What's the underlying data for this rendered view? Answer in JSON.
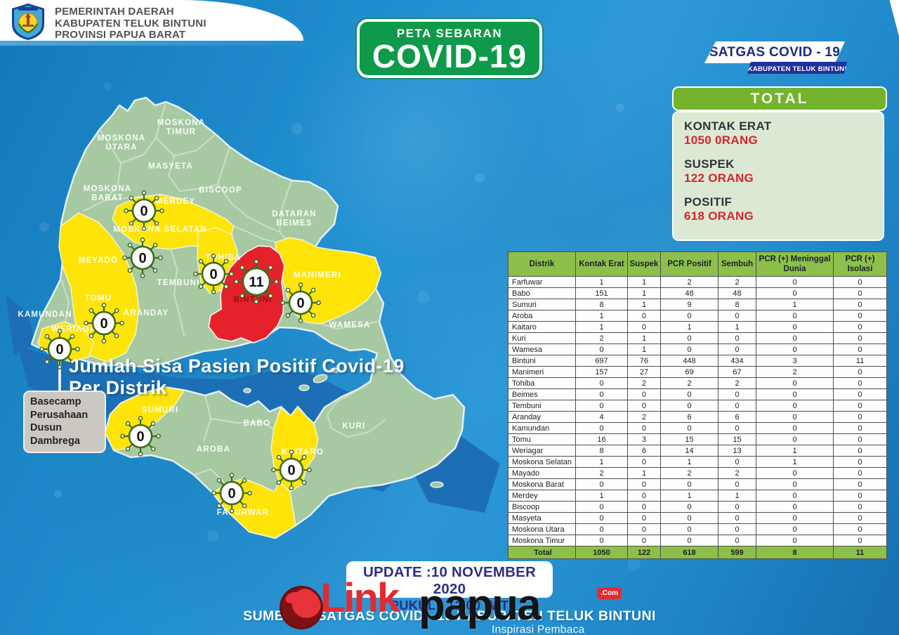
{
  "header": {
    "government": [
      "PEMERINTAH DAERAH",
      "KABUPATEN TELUK BINTUNI",
      "PROVINSI PAPUA BARAT"
    ],
    "sign": {
      "line1": "PETA SEBARAN",
      "line2": "COVID-19"
    },
    "satgas": {
      "title": "SATGAS COVID - 19",
      "subtitle": "KABUPATEN TELUK BINTUNI"
    }
  },
  "totals": {
    "title": "TOTAL",
    "stats": [
      {
        "label": "KONTAK ERAT",
        "value": "1050 0RANG"
      },
      {
        "label": "SUSPEK",
        "value": "122 ORANG"
      },
      {
        "label": "POSITIF",
        "value": "618 ORANG"
      }
    ]
  },
  "map": {
    "caption_line1": "Jumlah Sisa Pasien Positif Covid-19",
    "caption_line2": "Per Distrik",
    "annotation": [
      "Basecamp",
      "Perusahaan",
      "Dusun",
      "Dambrega"
    ],
    "labels": [
      {
        "id": "moskona-timur",
        "lines": [
          "MOSKONA",
          "TIMUR"
        ]
      },
      {
        "id": "moskona-utara",
        "lines": [
          "MOSKONA",
          "UTARA"
        ]
      },
      {
        "id": "masyeta",
        "lines": [
          "MASYETA"
        ]
      },
      {
        "id": "moskona-barat",
        "lines": [
          "MOSKONA",
          "BARAT"
        ]
      },
      {
        "id": "merdey",
        "lines": [
          "MERDEY"
        ]
      },
      {
        "id": "biscoop",
        "lines": [
          "BISCOOP"
        ]
      },
      {
        "id": "dataran-beimes",
        "lines": [
          "DATARAN",
          "BEIMES"
        ]
      },
      {
        "id": "moskona-selatan",
        "lines": [
          "MOSKONA SELATAN"
        ]
      },
      {
        "id": "meyado",
        "lines": [
          "MEYADO"
        ]
      },
      {
        "id": "tohiba",
        "lines": [
          "TOHIBA"
        ]
      },
      {
        "id": "tembuni",
        "lines": [
          "TEMBUNI"
        ]
      },
      {
        "id": "aranday",
        "lines": [
          "ARANDAY"
        ]
      },
      {
        "id": "tomu",
        "lines": [
          "TOMU"
        ]
      },
      {
        "id": "kamundan",
        "lines": [
          "KAMUNDAN"
        ]
      },
      {
        "id": "weriagar",
        "lines": [
          "WERIAGAR"
        ]
      },
      {
        "id": "bintuni",
        "lines": [
          "BINTUNI"
        ],
        "emphasis": "dark-red"
      },
      {
        "id": "manimeri",
        "lines": [
          "MANIMERI"
        ]
      },
      {
        "id": "wamesa",
        "lines": [
          "WAMESA"
        ]
      },
      {
        "id": "sumuri",
        "lines": [
          "SUMURI"
        ]
      },
      {
        "id": "babo",
        "lines": [
          "BABO"
        ]
      },
      {
        "id": "aroba",
        "lines": [
          "AROBA"
        ]
      },
      {
        "id": "kaitaro",
        "lines": [
          "KAITARO"
        ]
      },
      {
        "id": "kuri",
        "lines": [
          "KURI"
        ]
      },
      {
        "id": "fafurwar",
        "lines": [
          "FAFURWAR"
        ]
      }
    ],
    "badges": [
      {
        "id": "moskona-selatan",
        "district": "Moskona Selatan",
        "value": "0"
      },
      {
        "id": "meyado",
        "district": "Meyado",
        "value": "0"
      },
      {
        "id": "tohiba",
        "district": "Tohiba",
        "value": "0"
      },
      {
        "id": "bintuni",
        "district": "Bintuni",
        "value": "11"
      },
      {
        "id": "manimeri",
        "district": "Manimeri",
        "value": "0"
      },
      {
        "id": "tomu",
        "district": "Tomu",
        "value": "0"
      },
      {
        "id": "weriagar",
        "district": "Weriagar",
        "value": "0"
      },
      {
        "id": "sumuri",
        "district": "Sumuri",
        "value": "0"
      },
      {
        "id": "kaitaro",
        "district": "Kaitaro",
        "value": "0"
      },
      {
        "id": "fafurwar",
        "district": "Fafurwar",
        "value": "0"
      }
    ]
  },
  "table": {
    "columns": [
      "Distrik",
      "Kontak Erat",
      "Suspek",
      "PCR Positif",
      "Sembuh",
      "PCR (+) Meninggal Dunia",
      "PCR (+) Isolasi"
    ],
    "rows": [
      [
        "Farfuwar",
        "1",
        "1",
        "2",
        "2",
        "0",
        "0"
      ],
      [
        "Babo",
        "151",
        "1",
        "48",
        "48",
        "0",
        "0"
      ],
      [
        "Sumuri",
        "8",
        "1",
        "9",
        "8",
        "1",
        "0"
      ],
      [
        "Aroba",
        "1",
        "0",
        "0",
        "0",
        "0",
        "0"
      ],
      [
        "Kaitaro",
        "1",
        "0",
        "1",
        "1",
        "0",
        "0"
      ],
      [
        "Kuri",
        "2",
        "1",
        "0",
        "0",
        "0",
        "0"
      ],
      [
        "Wamesa",
        "0",
        "1",
        "0",
        "0",
        "0",
        "0"
      ],
      [
        "Bintuni",
        "697",
        "76",
        "448",
        "434",
        "3",
        "11"
      ],
      [
        "Manimeri",
        "157",
        "27",
        "69",
        "67",
        "2",
        "0"
      ],
      [
        "Tohiba",
        "0",
        "2",
        "2",
        "2",
        "0",
        "0"
      ],
      [
        "Beimes",
        "0",
        "0",
        "0",
        "0",
        "0",
        "0"
      ],
      [
        "Tembuni",
        "0",
        "0",
        "0",
        "0",
        "0",
        "0"
      ],
      [
        "Aranday",
        "4",
        "2",
        "6",
        "6",
        "0",
        "0"
      ],
      [
        "Kamundan",
        "0",
        "0",
        "0",
        "0",
        "0",
        "0"
      ],
      [
        "Tomu",
        "16",
        "3",
        "15",
        "15",
        "0",
        "0"
      ],
      [
        "Weriagar",
        "8",
        "6",
        "14",
        "13",
        "1",
        "0"
      ],
      [
        "Moskona Selatan",
        "1",
        "0",
        "1",
        "0",
        "1",
        "0"
      ],
      [
        "Mayado",
        "2",
        "1",
        "2",
        "2",
        "0",
        "0"
      ],
      [
        "Moskona Barat",
        "0",
        "0",
        "0",
        "0",
        "0",
        "0"
      ],
      [
        "Merdey",
        "1",
        "0",
        "1",
        "1",
        "0",
        "0"
      ],
      [
        "Biscoop",
        "0",
        "0",
        "0",
        "0",
        "0",
        "0"
      ],
      [
        "Masyeta",
        "0",
        "0",
        "0",
        "0",
        "0",
        "0"
      ],
      [
        "Moskona Utara",
        "0",
        "0",
        "0",
        "0",
        "0",
        "0"
      ],
      [
        "Moskona Timur",
        "0",
        "0",
        "0",
        "0",
        "0",
        "0"
      ]
    ],
    "total": [
      "Total",
      "1050",
      "122",
      "618",
      "599",
      "8",
      "11"
    ]
  },
  "footer": {
    "update_line1": "UPDATE :10 NOVEMBER 2020",
    "update_line2": "PUKUL : 12.00 WIT",
    "source": "SUMBER : SATGAS COVID - 19 KABUPATEN TELUK BINTUNI",
    "watermark": {
      "brand_link": "Link",
      "brand_papua": "papua",
      "brand_com": ".Com",
      "tagline": "Inspirasi Pembaca"
    }
  },
  "colors": {
    "sea": "#2190d0",
    "bay": "#1d6fb5",
    "land": "#a6c9a1",
    "yellow": "#ffe40a",
    "red": "#e5212c",
    "sign-green": "#0e9a4a",
    "panel-green": "#74b32c",
    "panel-bg": "#dbe9d4",
    "table-green": "#8cc04a",
    "navy": "#1e2b7d",
    "value-red": "#d8242b",
    "brand-red": "#e4272e"
  }
}
